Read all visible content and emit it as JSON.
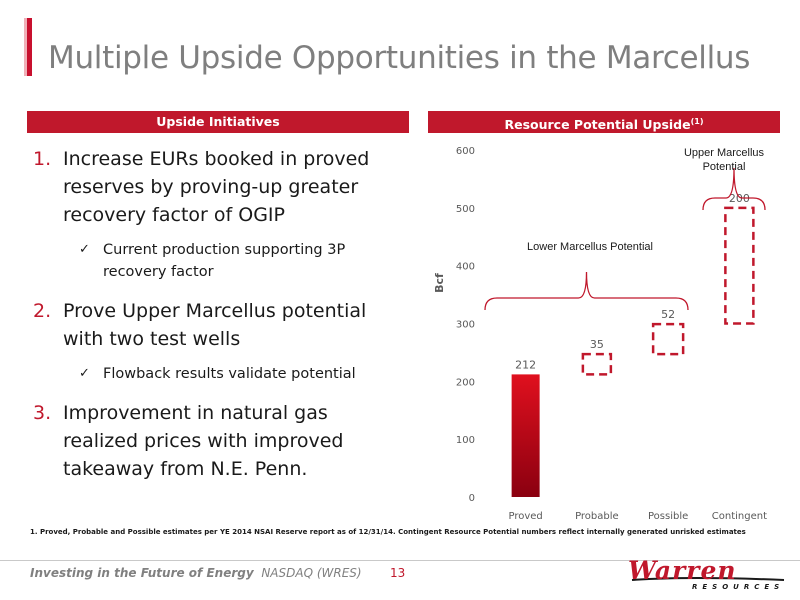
{
  "title": "Multiple Upside Opportunities in the Marcellus",
  "left_header": "Upside Initiatives",
  "right_header": "Resource Potential Upside",
  "right_header_sup": "(1)",
  "initiatives": [
    {
      "number": "1.",
      "text": "Increase EURs booked in proved reserves by proving-up greater recovery factor of OGIP",
      "sub": "Current production supporting 3P recovery factor"
    },
    {
      "number": "2.",
      "text": "Prove Upper Marcellus potential with two test wells",
      "sub": "Flowback results validate potential"
    },
    {
      "number": "3.",
      "text": "Improvement in natural gas realized prices with improved takeaway from N.E. Penn.",
      "sub": ""
    }
  ],
  "check_icon": "checkmark-icon",
  "footnote": "1. Proved, Probable and Possible estimates per YE 2014 NSAI Reserve report as of 12/31/14. Contingent Resource Potential numbers reflect internally generated unrisked estimates",
  "footer": {
    "tagline": "Investing in the Future of Energy",
    "ticker": "NASDAQ (WRES)",
    "page": "13"
  },
  "logo": {
    "word": "Warren",
    "sub": "RESOURCES"
  },
  "colors": {
    "accent": "#c0182c",
    "bar_gradient_top": "#e0101e",
    "bar_gradient_bottom": "#8a0010"
  },
  "chart_data": {
    "type": "bar",
    "variant": "waterfall",
    "ylabel": "Bcf",
    "ylim": [
      0,
      600
    ],
    "yticks": [
      0,
      100,
      200,
      300,
      400,
      500,
      600
    ],
    "categories": [
      "Proved",
      "Probable",
      "Possible",
      "Contingent"
    ],
    "values": [
      212,
      35,
      52,
      200
    ],
    "bases": [
      0,
      212,
      247,
      300
    ],
    "styles": [
      "solid",
      "dashed",
      "dashed",
      "dashed"
    ],
    "annotations": [
      {
        "text": "Lower Marcellus Potential",
        "spans": [
          "Proved",
          "Possible"
        ]
      },
      {
        "text": "Upper Marcellus Potential",
        "spans": [
          "Contingent"
        ]
      }
    ]
  }
}
